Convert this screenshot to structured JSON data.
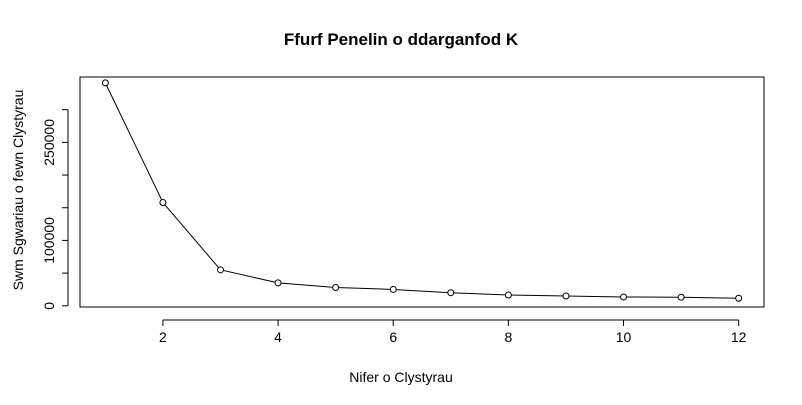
{
  "chart_data": {
    "type": "line",
    "title": "Ffurf Penelin o ddarganfod K",
    "xlabel": "Nifer o Clystyrau",
    "ylabel": "Swm Sgwariau o fewn Clystyrau",
    "x": [
      1,
      2,
      3,
      4,
      5,
      6,
      7,
      8,
      9,
      10,
      11,
      12
    ],
    "y": [
      341000,
      158000,
      55000,
      35000,
      28000,
      25000,
      20000,
      16500,
      15000,
      13500,
      13000,
      11500
    ],
    "x_ticks": [
      2,
      4,
      6,
      8,
      10,
      12
    ],
    "y_ticks": [
      0,
      50000,
      100000,
      150000,
      200000,
      250000,
      300000
    ],
    "y_tick_labels": [
      "0",
      "",
      "100000",
      "",
      "",
      "250000",
      ""
    ],
    "xlim": [
      0.56,
      12.44
    ],
    "ylim": [
      -1860,
      350000
    ],
    "grid": false,
    "markers": "open-circle"
  }
}
